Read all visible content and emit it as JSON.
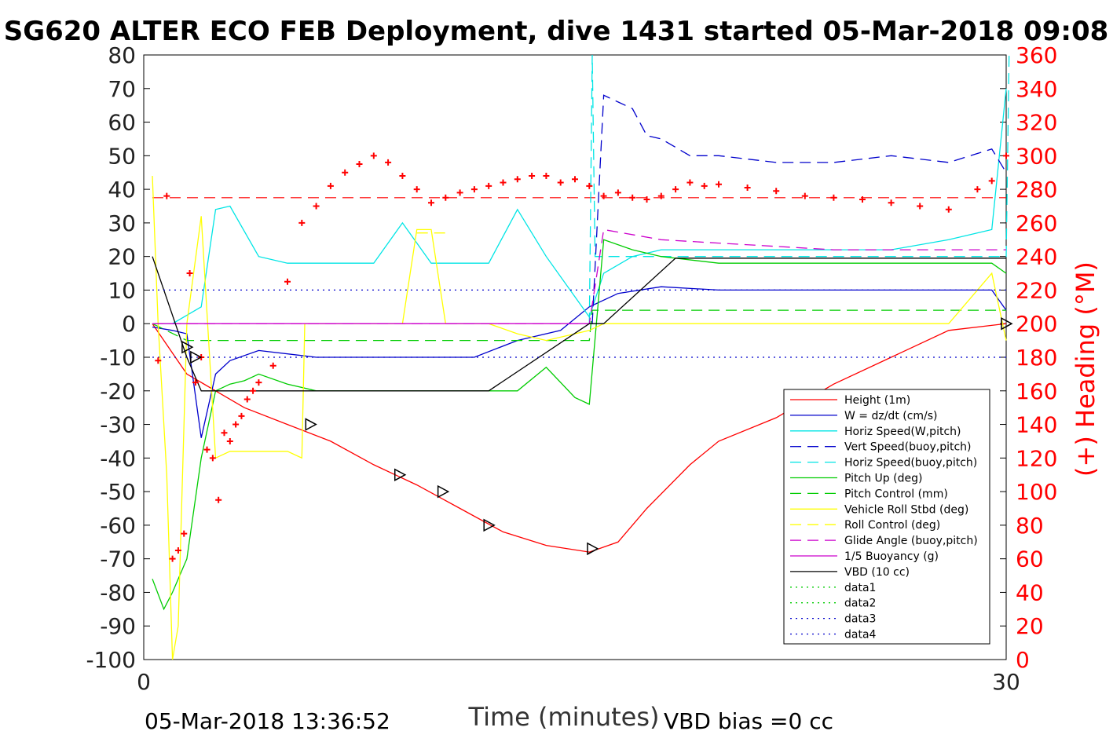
{
  "chart_data": {
    "type": "line",
    "title": "SG620 ALTER ECO FEB Deployment, dive 1431 started 05-Mar-2018 09:08",
    "xlabel": "Time (minutes)",
    "ylabel_right": "(+) Heading (°M)",
    "xlim": [
      0,
      30
    ],
    "ylim": [
      -100,
      80
    ],
    "ylim_right": [
      0,
      360
    ],
    "x_ticks": [
      "0",
      "30"
    ],
    "y_ticks": [
      "80",
      "70",
      "60",
      "50",
      "40",
      "30",
      "20",
      "10",
      "0",
      "-10",
      "-20",
      "-30",
      "-40",
      "-50",
      "-60",
      "-70",
      "-80",
      "-90",
      "-100"
    ],
    "y_right_ticks": [
      "360",
      "340",
      "320",
      "300",
      "280",
      "260",
      "240",
      "220",
      "200",
      "180",
      "160",
      "140",
      "120",
      "100",
      "80",
      "60",
      "40",
      "20",
      "0"
    ],
    "footer_left": "05-Mar-2018 13:36:52",
    "footer_right": "VBD bias =0 cc",
    "legend_position": "lower-right",
    "series": [
      {
        "name": "Height (1m)",
        "color": "#ff0000",
        "dash": "solid",
        "x": [
          0.3,
          1.5,
          2.5,
          3.5,
          5,
          6.5,
          8,
          9.5,
          11,
          12.5,
          14,
          15.5,
          16.5,
          17.5,
          19,
          20,
          22,
          24,
          26,
          28,
          30
        ],
        "y": [
          0,
          -15,
          -20,
          -25,
          -30,
          -35,
          -42,
          -48,
          -55,
          -62,
          -66,
          -68,
          -65,
          -55,
          -42,
          -35,
          -28,
          -18,
          -10,
          -2,
          0
        ]
      },
      {
        "name": "W = dz/dt (cm/s)",
        "color": "#0000cc",
        "dash": "solid",
        "x": [
          0.3,
          1,
          1.5,
          2,
          2.5,
          3,
          4,
          6,
          8,
          10,
          11.5,
          13,
          14.5,
          15.5,
          16.5,
          18,
          20,
          22,
          24,
          26,
          28,
          29.5,
          30
        ],
        "y": [
          -1,
          -2,
          -3,
          -34,
          -15,
          -11,
          -8,
          -10,
          -10,
          -10,
          -10,
          -5,
          -2,
          5,
          9,
          11,
          10,
          10,
          10,
          10,
          10,
          10,
          4
        ]
      },
      {
        "name": "Horiz Speed(W,pitch)",
        "color": "#00e5e5",
        "dash": "solid",
        "x": [
          0.3,
          1,
          2,
          2.5,
          3,
          4,
          5,
          6,
          8,
          9,
          10,
          11,
          12,
          13,
          14,
          15.5,
          16,
          17,
          18,
          20,
          22,
          24,
          26,
          28,
          29.5,
          30
        ],
        "y": [
          0,
          0,
          5,
          34,
          35,
          20,
          18,
          18,
          18,
          30,
          18,
          18,
          18,
          34,
          20,
          2,
          15,
          20,
          22,
          22,
          22,
          22,
          22,
          25,
          28,
          70
        ]
      },
      {
        "name": "Vert Speed(buoy,pitch)",
        "color": "#0000cc",
        "dash": "dashed",
        "x": [
          15.6,
          16,
          16.5,
          17,
          17.5,
          18,
          19,
          20,
          22,
          24,
          26,
          28,
          29.5,
          30
        ],
        "y": [
          0,
          68,
          66,
          64,
          56,
          55,
          50,
          50,
          48,
          48,
          50,
          48,
          52,
          45
        ]
      },
      {
        "name": "Horiz Speed(buoy,pitch)",
        "color": "#00e5e5",
        "dash": "dashed",
        "x": [
          15.5,
          15.6,
          15.7,
          30,
          30.1
        ],
        "y": [
          0,
          80,
          20,
          20,
          80
        ]
      },
      {
        "name": "Pitch Up (deg)",
        "color": "#00cc00",
        "dash": "solid",
        "x": [
          0.3,
          0.7,
          1,
          1.5,
          2,
          2.5,
          3,
          3.5,
          4,
          5,
          6,
          8,
          10,
          11,
          12,
          13,
          14,
          15,
          15.5,
          16,
          17,
          18,
          20,
          22,
          24,
          26,
          28,
          29.5,
          30
        ],
        "y": [
          -76,
          -85,
          -80,
          -70,
          -40,
          -20,
          -18,
          -17,
          -15,
          -18,
          -20,
          -20,
          -20,
          -20,
          -20,
          -20,
          -13,
          -22,
          -24,
          25,
          22,
          20,
          18,
          18,
          18,
          18,
          18,
          18,
          15
        ]
      },
      {
        "name": "Pitch Control (mm)",
        "color": "#00cc00",
        "dash": "dashed",
        "x": [
          0.3,
          1.5,
          2,
          15.5,
          15.6,
          30
        ],
        "y": [
          0,
          -5,
          -5,
          -5,
          4,
          4
        ]
      },
      {
        "name": "Vehicle Roll Stbd (deg)",
        "color": "#ffff00",
        "dash": "solid",
        "x": [
          0.3,
          0.5,
          0.8,
          1,
          1.2,
          1.5,
          2,
          2.5,
          3,
          4,
          5,
          5.5,
          5.6,
          7,
          8,
          9,
          9.5,
          10,
          10.5,
          11,
          12,
          13,
          14,
          15,
          15.5,
          16,
          18,
          20,
          22,
          24,
          26,
          28,
          29.5,
          30
        ],
        "y": [
          44,
          0,
          -45,
          -100,
          -90,
          0,
          32,
          -40,
          -38,
          -38,
          -38,
          -40,
          0,
          0,
          0,
          0,
          28,
          28,
          0,
          0,
          0,
          -3,
          -5,
          -3,
          -2,
          0,
          0,
          0,
          0,
          0,
          0,
          0,
          15,
          -5
        ]
      },
      {
        "name": "Roll Control (deg)",
        "color": "#ffff00",
        "dash": "dashed",
        "x": [
          9.5,
          10,
          10.5
        ],
        "y": [
          27,
          27,
          27
        ]
      },
      {
        "name": "Glide Angle (buoy,pitch)",
        "color": "#cc00cc",
        "dash": "dashed",
        "x": [
          0.3,
          15.5,
          16,
          18,
          20,
          22,
          24,
          26,
          28,
          30
        ],
        "y": [
          0,
          0,
          28,
          25,
          24,
          23,
          22,
          22,
          22,
          22
        ]
      },
      {
        "name": "1/5 Buoyancy (g)",
        "color": "#cc00cc",
        "dash": "solid",
        "x": [
          0.3,
          15.5
        ],
        "y": [
          0,
          0
        ]
      },
      {
        "name": "VBD (10 cc)",
        "color": "#000000",
        "dash": "solid",
        "x": [
          0.3,
          1.5,
          2,
          2.5,
          12,
          15.5,
          16,
          18.5,
          30
        ],
        "y": [
          20,
          -10,
          -20,
          -20,
          -20,
          0,
          0,
          19.5,
          19.5
        ]
      },
      {
        "name": "data1",
        "color": "#00cc00",
        "dash": "dotted",
        "x": [],
        "y": []
      },
      {
        "name": "data2",
        "color": "#00cc00",
        "dash": "dotted",
        "x": [],
        "y": []
      },
      {
        "name": "data3",
        "color": "#0000cc",
        "dash": "dotted",
        "x": [
          0.3,
          30
        ],
        "y": [
          10,
          10
        ]
      },
      {
        "name": "data4",
        "color": "#0000cc",
        "dash": "dotted",
        "x": [
          0.3,
          30
        ],
        "y": [
          -10,
          -10
        ]
      }
    ],
    "heading_series": {
      "name": "heading",
      "color": "#ff0000",
      "x": [
        0.5,
        0.8,
        1,
        1.2,
        1.4,
        1.6,
        1.8,
        2,
        2.2,
        2.4,
        2.6,
        2.8,
        3,
        3.2,
        3.4,
        3.6,
        3.8,
        4,
        4.5,
        5,
        5.5,
        6,
        6.5,
        7,
        7.5,
        8,
        8.5,
        9,
        9.5,
        10,
        10.5,
        11,
        11.5,
        12,
        12.5,
        13,
        13.5,
        14,
        14.5,
        15,
        15.5,
        16,
        16.5,
        17,
        17.5,
        18,
        18.5,
        19,
        19.5,
        20,
        21,
        22,
        23,
        24,
        25,
        26,
        27,
        28,
        29,
        29.5,
        30
      ],
      "y": [
        178,
        276,
        60,
        65,
        75,
        230,
        165,
        180,
        125,
        120,
        95,
        135,
        130,
        140,
        145,
        155,
        160,
        165,
        175,
        225,
        260,
        270,
        282,
        290,
        295,
        300,
        296,
        288,
        280,
        272,
        275,
        278,
        280,
        282,
        284,
        286,
        288,
        288,
        284,
        286,
        282,
        276,
        278,
        275,
        274,
        276,
        280,
        284,
        282,
        283,
        281,
        279,
        276,
        275,
        274,
        272,
        270,
        268,
        280,
        285,
        300
      ]
    },
    "reference_lines": [
      {
        "name": "heading-ref",
        "color": "#ff0000",
        "dash": "dashed",
        "y_right": 275
      }
    ],
    "triangle_markers": {
      "x": [
        1.5,
        1.8,
        5.8,
        8.9,
        10.4,
        12,
        15.6,
        30
      ],
      "y": [
        -7,
        -10,
        -30,
        -45,
        -50,
        -60,
        -67,
        0
      ]
    }
  }
}
